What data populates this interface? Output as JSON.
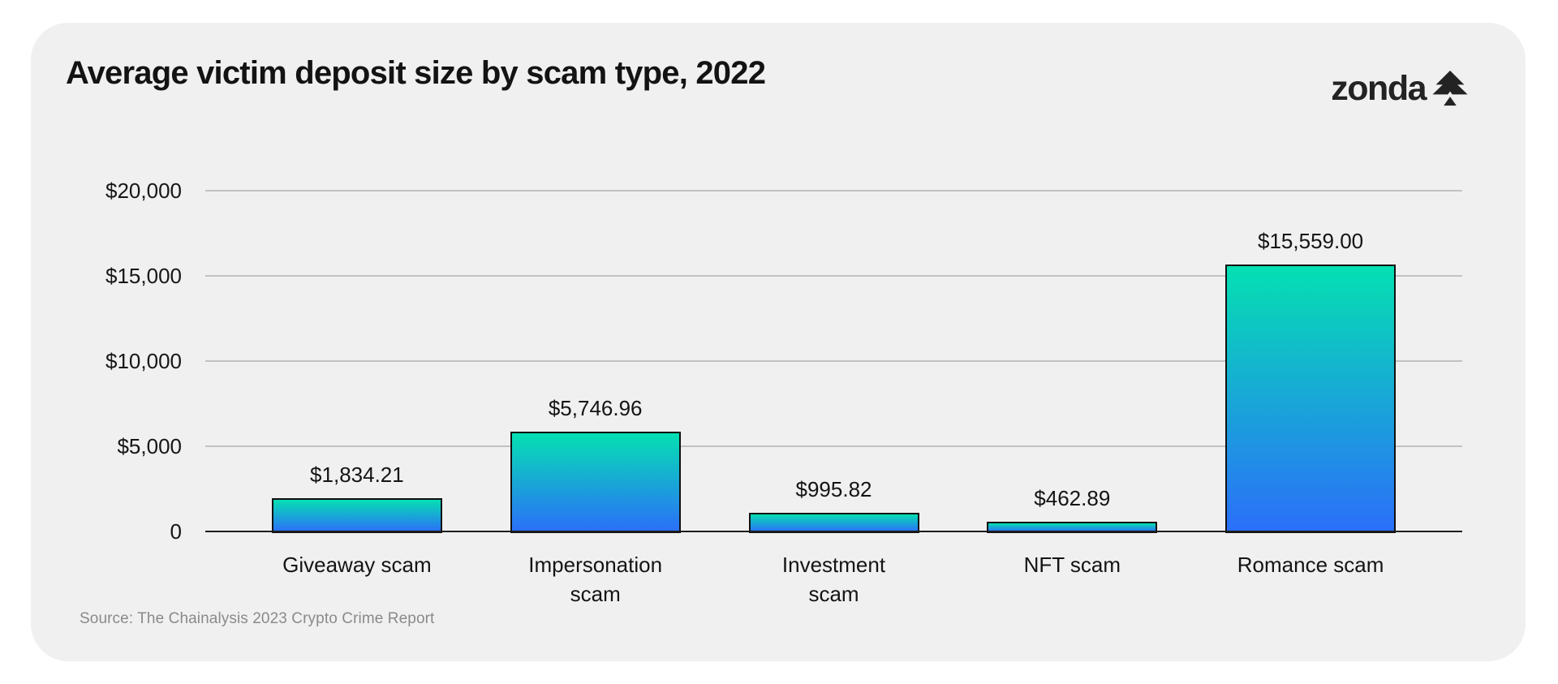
{
  "header": {
    "title": "Average victim deposit size by scam type, 2022"
  },
  "logo": {
    "text": "zonda",
    "icon": "spade-tree-icon"
  },
  "footer": {
    "source": "Source: The Chainalysis 2023 Crypto Crime Report"
  },
  "colors": {
    "page_bg": "#ffffff",
    "card_bg": "#f0f0f0",
    "bar_gradient_top": "#05e0b2",
    "bar_gradient_bottom": "#2b6ff9",
    "bar_border": "#111111",
    "gridline": "#c2c2c2",
    "axis_line": "#1b1b1b",
    "text": "#141414",
    "source_text": "#8a8a8a",
    "logo_color": "#232323"
  },
  "chart_data": {
    "type": "bar",
    "title": "Average victim deposit size by scam type, 2022",
    "categories": [
      "Giveaway scam",
      "Impersonation\nscam",
      "Investment\nscam",
      "NFT scam",
      "Romance scam"
    ],
    "values": [
      1834.21,
      5746.96,
      995.82,
      462.89,
      15559.0
    ],
    "value_labels": [
      "$1,834.21",
      "$5,746.96",
      "$995.82",
      "$462.89",
      "$15,559.00"
    ],
    "xlabel": "",
    "ylabel": "",
    "ylim": [
      0,
      20000
    ],
    "yticks": [
      0,
      5000,
      10000,
      15000,
      20000
    ],
    "ytick_labels": [
      "0",
      "$5,000",
      "$10,000",
      "$15,000",
      "$20,000"
    ],
    "grid": true,
    "legend": false,
    "source": "Source: The Chainalysis 2023 Crypto Crime Report"
  }
}
